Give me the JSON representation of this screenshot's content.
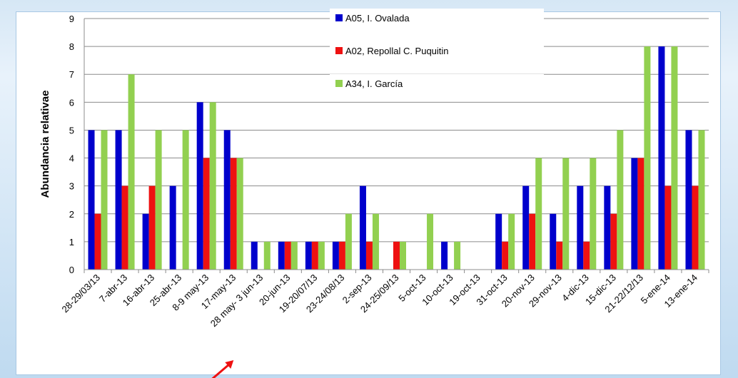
{
  "chart_data": {
    "type": "bar",
    "title": "",
    "xlabel": "",
    "ylabel": "Abundancia relativae",
    "ylim": [
      0,
      9
    ],
    "yticks": [
      0,
      1,
      2,
      3,
      4,
      5,
      6,
      7,
      8,
      9
    ],
    "grid": "horizontal",
    "legend_position": "top-center",
    "categories": [
      "28-29/03/13",
      "7-abr-13",
      "16-abr-13",
      "25-abr-13",
      "8-9 may-13",
      "17-may-13",
      "28 may- 3 jun-13",
      "20-jun-13",
      "19-20/07/13",
      "23-24/08/13",
      "2-sep-13",
      "24-25/09/13",
      "5-oct-13",
      "10-oct-13",
      "19-oct-13",
      "31-oct-13",
      "20-nov-13",
      "29-nov-13",
      "4-dic-13",
      "15-dic-13",
      "21-22/12/13",
      "5-ene-14",
      "13-ene-14"
    ],
    "series": [
      {
        "name": "A05, I. Ovalada",
        "color": "#0000cc",
        "values": [
          5,
          5,
          2,
          3,
          6,
          5,
          1,
          1,
          1,
          1,
          3,
          0,
          0,
          1,
          0,
          2,
          3,
          2,
          3,
          3,
          4,
          8,
          5
        ]
      },
      {
        "name": "A02, Repollal C. Puquitin",
        "color": "#ee1111",
        "values": [
          2,
          3,
          3,
          0,
          4,
          4,
          0,
          1,
          1,
          1,
          1,
          1,
          0,
          0,
          0,
          1,
          2,
          1,
          1,
          2,
          4,
          3,
          3
        ]
      },
      {
        "name": "A34, I. García",
        "color": "#92d050",
        "values": [
          5,
          7,
          5,
          5,
          6,
          4,
          1,
          1,
          1,
          2,
          2,
          1,
          2,
          1,
          0,
          2,
          4,
          4,
          4,
          5,
          8,
          8,
          5
        ]
      }
    ],
    "annotation": {
      "type": "arrow",
      "color": "#ee1111",
      "points_to": "28 may- 3 jun-13"
    }
  }
}
